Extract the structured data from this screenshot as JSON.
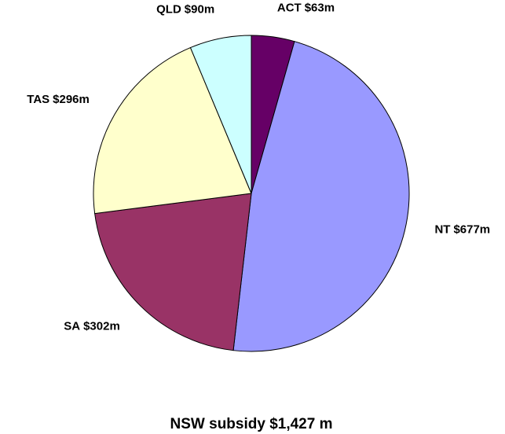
{
  "chart_data": {
    "type": "pie",
    "title": "NSW subsidy $1,427 m",
    "categories": [
      "ACT",
      "NT",
      "SA",
      "TAS",
      "QLD"
    ],
    "values": [
      63,
      677,
      302,
      296,
      90
    ],
    "value_labels": [
      "$63m",
      "$677m",
      "$302m",
      "$296m",
      "$90m"
    ],
    "colors": [
      "#660066",
      "#9999ff",
      "#993366",
      "#ffffcc",
      "#ccffff"
    ]
  }
}
